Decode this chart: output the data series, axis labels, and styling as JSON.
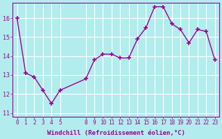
{
  "x": [
    0,
    1,
    2,
    3,
    4,
    5,
    8,
    9,
    10,
    11,
    12,
    13,
    14,
    15,
    16,
    17,
    18,
    19,
    20,
    21,
    22,
    23
  ],
  "y": [
    16.0,
    13.1,
    12.9,
    12.2,
    11.5,
    12.2,
    12.8,
    13.8,
    14.1,
    14.1,
    13.9,
    13.9,
    14.9,
    15.5,
    16.6,
    16.6,
    15.7,
    15.4,
    14.7,
    15.4,
    15.3,
    13.8
  ],
  "xticks": [
    0,
    1,
    2,
    3,
    4,
    5,
    8,
    9,
    10,
    11,
    12,
    13,
    14,
    15,
    16,
    17,
    18,
    19,
    20,
    21,
    22,
    23
  ],
  "yticks": [
    11,
    12,
    13,
    14,
    15,
    16
  ],
  "ylim": [
    10.8,
    16.8
  ],
  "xlim": [
    -0.5,
    23.5
  ],
  "line_color": "#990099",
  "marker_color": "#990099",
  "bg_color": "#b3ecec",
  "grid_color": "#ffffff",
  "xlabel": "Windchill (Refroidissement éolien,°C)",
  "xlabel_color": "#990099",
  "tick_color": "#990099"
}
